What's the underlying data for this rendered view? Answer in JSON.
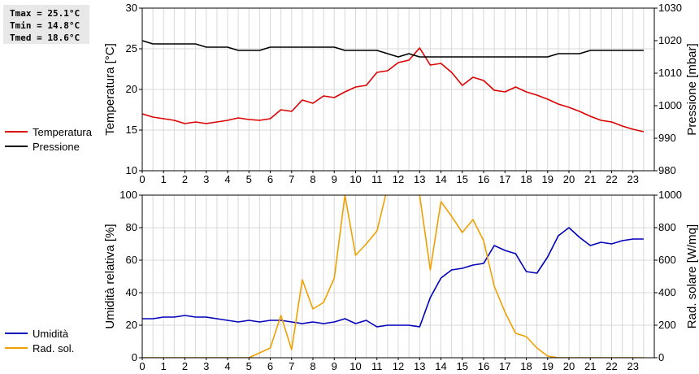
{
  "stats": {
    "tmax": "Tmax = 25.1°C",
    "tmin": "Tmin = 14.8°C",
    "tmed": "Tmed = 18.6°C"
  },
  "legend_top": [
    {
      "label": "Temperatura",
      "color": "#dd0000"
    },
    {
      "label": "Pressione",
      "color": "#000000"
    }
  ],
  "legend_bottom": [
    {
      "label": "Umidità",
      "color": "#0000bb"
    },
    {
      "label": "Rad. sol.",
      "color": "#f0a000"
    }
  ],
  "chart_data": [
    {
      "type": "line",
      "xlim": [
        0,
        24
      ],
      "xticks": [
        "0",
        "1",
        "2",
        "3",
        "4",
        "5",
        "6",
        "7",
        "8",
        "9",
        "10",
        "11",
        "12",
        "13",
        "14",
        "15",
        "16",
        "17",
        "18",
        "19",
        "20",
        "21",
        "22",
        "23"
      ],
      "ylabel": "Temperatura [°C]",
      "ylim": [
        10,
        30
      ],
      "yticks": [
        "10",
        "15",
        "20",
        "25",
        "30"
      ],
      "y2label": "Pressione [mbar]",
      "y2lim": [
        980,
        1030
      ],
      "y2ticks": [
        "980",
        "990",
        "1000",
        "1010",
        "1020",
        "1030"
      ],
      "grid": true,
      "series": [
        {
          "name": "Temperatura",
          "axis": "left",
          "color": "#dd0000",
          "x": [
            0,
            0.5,
            1,
            1.5,
            2,
            2.5,
            3,
            3.5,
            4,
            4.5,
            5,
            5.5,
            6,
            6.5,
            7,
            7.5,
            8,
            8.5,
            9,
            9.5,
            10,
            10.5,
            11,
            11.5,
            12,
            12.5,
            13,
            13.5,
            14,
            14.5,
            15,
            15.5,
            16,
            16.5,
            17,
            17.5,
            18,
            18.5,
            19,
            19.5,
            20,
            20.5,
            21,
            21.5,
            22,
            22.5,
            23,
            23.5
          ],
          "y": [
            17.0,
            16.6,
            16.4,
            16.2,
            15.8,
            16.0,
            15.8,
            16.0,
            16.2,
            16.5,
            16.3,
            16.2,
            16.4,
            17.5,
            17.3,
            18.7,
            18.3,
            19.2,
            19.0,
            19.7,
            20.3,
            20.5,
            22.1,
            22.3,
            23.3,
            23.6,
            25.1,
            23.0,
            23.2,
            22.1,
            20.5,
            21.5,
            21.1,
            19.9,
            19.7,
            20.3,
            19.7,
            19.3,
            18.8,
            18.2,
            17.8,
            17.3,
            16.7,
            16.2,
            16.0,
            15.5,
            15.1,
            14.8
          ]
        },
        {
          "name": "Pressione",
          "axis": "right",
          "color": "#000000",
          "x": [
            0,
            0.5,
            1,
            1.5,
            2,
            2.5,
            3,
            3.5,
            4,
            4.5,
            5,
            5.5,
            6,
            6.5,
            7,
            7.5,
            8,
            8.5,
            9,
            9.5,
            10,
            10.5,
            11,
            11.5,
            12,
            12.5,
            13,
            13.5,
            14,
            14.5,
            15,
            15.5,
            16,
            16.5,
            17,
            17.5,
            18,
            18.5,
            19,
            19.5,
            20,
            20.5,
            21,
            21.5,
            22,
            22.5,
            23,
            23.5
          ],
          "y": [
            1020,
            1019,
            1019,
            1019,
            1019,
            1019,
            1018,
            1018,
            1018,
            1017,
            1017,
            1017,
            1018,
            1018,
            1018,
            1018,
            1018,
            1018,
            1018,
            1017,
            1017,
            1017,
            1017,
            1016,
            1015,
            1016,
            1015,
            1015,
            1015,
            1015,
            1015,
            1015,
            1015,
            1015,
            1015,
            1015,
            1015,
            1015,
            1015,
            1016,
            1016,
            1016,
            1017,
            1017,
            1017,
            1017,
            1017,
            1017
          ]
        }
      ]
    },
    {
      "type": "line",
      "xlim": [
        0,
        24
      ],
      "xticks": [
        "0",
        "1",
        "2",
        "3",
        "4",
        "5",
        "6",
        "7",
        "8",
        "9",
        "10",
        "11",
        "12",
        "13",
        "14",
        "15",
        "16",
        "17",
        "18",
        "19",
        "20",
        "21",
        "22",
        "23"
      ],
      "ylabel": "Umidità relativa [%]",
      "ylim": [
        0,
        100
      ],
      "yticks": [
        "0",
        "20",
        "40",
        "60",
        "80",
        "100"
      ],
      "y2label": "Rad. solare [W/mq]",
      "y2lim": [
        0,
        1000
      ],
      "y2ticks": [
        "0",
        "200",
        "400",
        "600",
        "800",
        "1000"
      ],
      "grid": true,
      "series": [
        {
          "name": "Umidità",
          "axis": "left",
          "color": "#0000bb",
          "x": [
            0,
            0.5,
            1,
            1.5,
            2,
            2.5,
            3,
            3.5,
            4,
            4.5,
            5,
            5.5,
            6,
            6.5,
            7,
            7.5,
            8,
            8.5,
            9,
            9.5,
            10,
            10.5,
            11,
            11.5,
            12,
            12.5,
            13,
            13.5,
            14,
            14.5,
            15,
            15.5,
            16,
            16.5,
            17,
            17.5,
            18,
            18.5,
            19,
            19.5,
            20,
            20.5,
            21,
            21.5,
            22,
            22.5,
            23,
            23.5
          ],
          "y": [
            24,
            24,
            25,
            25,
            26,
            25,
            25,
            24,
            23,
            22,
            23,
            22,
            23,
            23,
            22,
            21,
            22,
            21,
            22,
            24,
            21,
            23,
            19,
            20,
            20,
            20,
            19,
            37,
            49,
            54,
            55,
            57,
            58,
            69,
            66,
            64,
            53,
            52,
            62,
            75,
            80,
            74,
            69,
            71,
            70,
            72,
            73,
            73
          ]
        },
        {
          "name": "Rad. sol.",
          "axis": "right",
          "color": "#f0a000",
          "x": [
            0,
            0.5,
            1,
            1.5,
            2,
            2.5,
            3,
            3.5,
            4,
            4.5,
            5,
            5.5,
            6,
            6.5,
            7,
            7.5,
            8,
            8.5,
            9,
            9.5,
            10,
            10.5,
            11,
            11.5,
            12,
            12.5,
            13,
            13.5,
            14,
            14.5,
            15,
            15.5,
            16,
            16.5,
            17,
            17.5,
            18,
            18.5,
            19,
            19.5,
            20,
            20.5,
            21,
            21.5,
            22,
            22.5,
            23,
            23.5
          ],
          "y": [
            0,
            0,
            0,
            0,
            0,
            0,
            0,
            0,
            0,
            0,
            0,
            30,
            60,
            260,
            50,
            480,
            300,
            340,
            490,
            1000,
            630,
            700,
            780,
            1050,
            1100,
            1100,
            1000,
            540,
            960,
            870,
            770,
            850,
            720,
            440,
            280,
            150,
            130,
            60,
            10,
            0,
            0,
            0,
            0,
            0,
            0,
            0,
            0,
            0
          ]
        }
      ]
    }
  ]
}
